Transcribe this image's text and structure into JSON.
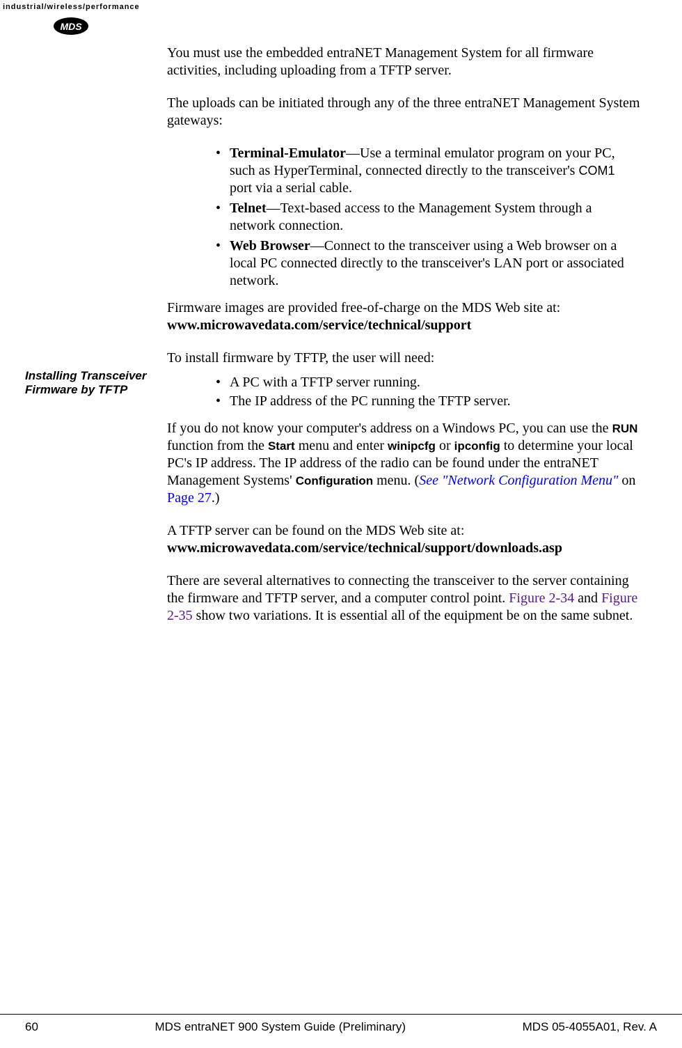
{
  "header": {
    "tagline": "industrial/wireless/performance",
    "logo_text": "MDS"
  },
  "sidebar": {
    "installing_label": "Installing Transceiver Firmware by TFTP"
  },
  "content": {
    "para1": "You must use the embedded entraNET Management System for all firmware activities, including uploading from a TFTP server.",
    "para2": "The uploads can be initiated through any of the three entraNET Management System gateways:",
    "bullets1": {
      "item1_bold": "Terminal-Emulator",
      "item1_rest": "—Use a terminal emulator program on your PC, such as HyperTerminal, connected directly to the transceiver's ",
      "item1_com1": "COM1",
      "item1_tail": " port via a serial cable.",
      "item2_bold": "Telnet",
      "item2_rest": "—Text-based access to the Management System through a network connection.",
      "item3_bold": "Web Browser",
      "item3_rest": "—Connect to the transceiver using a Web browser on a local PC connected directly to the transceiver's LAN port or associated network."
    },
    "para3_text": "Firmware images are provided free-of-charge on the MDS Web site at: ",
    "para3_url": "www.microwavedata.com/service/technical/support",
    "para4": "To install firmware by TFTP, the user will need:",
    "bullets2": {
      "item1": "A PC with a TFTP server running.",
      "item2": "The IP address of the PC running the TFTP server."
    },
    "para5_part1": "If you do not know your computer's address on a Windows PC, you can use the ",
    "para5_run": "RUN",
    "para5_part2": " function from the ",
    "para5_start": "Start",
    "para5_part3": " menu and enter ",
    "para5_winipcfg": "winipcfg",
    "para5_part4": " or ",
    "para5_ipconfig": "ipconfig",
    "para5_part5": " to determine your local PC's IP address. The IP address of the radio can be found under the entraNET Management Systems' ",
    "para5_config": "Configuration",
    "para5_part6": " menu. (",
    "para5_see": "See \"Network Configuration Menu\"",
    "para5_on": " on ",
    "para5_page": "Page 27",
    "para5_tail": ".)",
    "para6_text": "A TFTP server can be found on the MDS Web site at:",
    "para6_url": "www.microwavedata.com/service/technical/support/downloads.asp",
    "para7_part1": "There are several alternatives to connecting the transceiver to the server containing the firmware and TFTP server, and a computer control point. ",
    "para7_fig1": "Figure 2-34",
    "para7_and": " and ",
    "para7_fig2": "Figure 2-35",
    "para7_part2": " show two variations. It is essential all of the equipment be on the same subnet."
  },
  "footer": {
    "page_num": "60",
    "center": "MDS entraNET 900 System Guide (Preliminary)",
    "right": "MDS 05-4055A01, Rev. A"
  }
}
